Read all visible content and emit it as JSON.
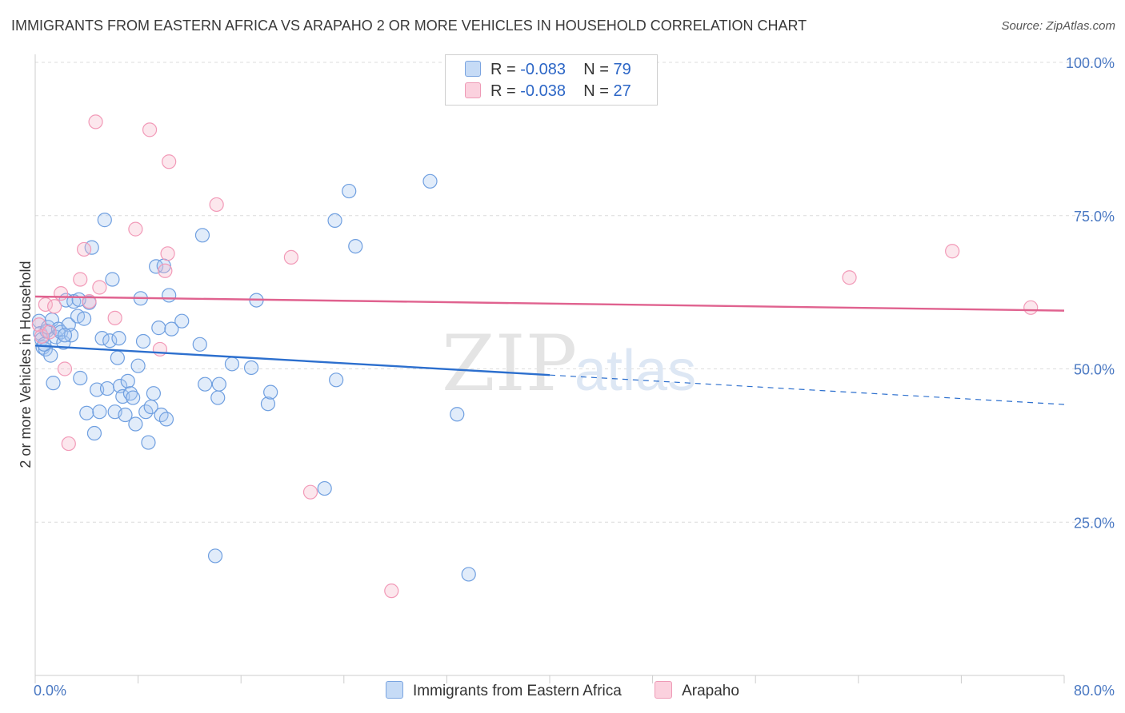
{
  "title": "IMMIGRANTS FROM EASTERN AFRICA VS ARAPAHO 2 OR MORE VEHICLES IN HOUSEHOLD CORRELATION CHART",
  "source": "Source: ZipAtlas.com",
  "watermark": {
    "zip": "ZIP",
    "atlas": "atlas"
  },
  "legend": {
    "rows": [
      {
        "r_label": "R = ",
        "r_value": "-0.083",
        "n_label": "N = ",
        "n_value": "79",
        "color": "#a9c8f0"
      },
      {
        "r_label": "R = ",
        "r_value": "-0.038",
        "n_label": "N = ",
        "n_value": "27",
        "color": "#f6b9cc"
      }
    ]
  },
  "bottom_legend": [
    {
      "label": "Immigrants from Eastern Africa",
      "color": "#a9c8f0"
    },
    {
      "label": "Arapaho",
      "color": "#f6b9cc"
    }
  ],
  "chart_data": {
    "type": "scatter",
    "xlabel": "",
    "ylabel": "2 or more Vehicles in Household",
    "xlim": [
      0,
      80
    ],
    "ylim": [
      0,
      100
    ],
    "x_tick_labels": [
      "0.0%",
      "80.0%"
    ],
    "y_ticks": [
      25,
      50,
      75,
      100
    ],
    "y_tick_labels": [
      "25.0%",
      "50.0%",
      "75.0%",
      "100.0%"
    ],
    "grid": true,
    "legend_position": "top-center",
    "series": [
      {
        "name": "Immigrants from Eastern Africa",
        "color": "#6f9fe0",
        "line_color": "#2c6fce",
        "trend": {
          "x0": 0,
          "y0": 53.8,
          "x1": 40,
          "y1": 49.0,
          "dash_to_x": 80,
          "dash_to_y": 44.2
        },
        "points": [
          [
            0.3,
            57.8
          ],
          [
            0.4,
            55.8
          ],
          [
            0.5,
            54.8
          ],
          [
            0.6,
            53.5
          ],
          [
            0.8,
            53.2
          ],
          [
            0.9,
            56.2
          ],
          [
            1.0,
            56.8
          ],
          [
            1.2,
            52.2
          ],
          [
            1.3,
            58.0
          ],
          [
            1.4,
            47.7
          ],
          [
            1.6,
            55.2
          ],
          [
            1.8,
            56.5
          ],
          [
            2.0,
            56.0
          ],
          [
            2.2,
            54.3
          ],
          [
            2.4,
            61.2
          ],
          [
            2.6,
            57.2
          ],
          [
            2.8,
            55.5
          ],
          [
            3.0,
            61.0
          ],
          [
            3.3,
            58.6
          ],
          [
            3.5,
            48.5
          ],
          [
            3.8,
            58.2
          ],
          [
            4.0,
            42.8
          ],
          [
            4.2,
            60.8
          ],
          [
            4.4,
            69.8
          ],
          [
            4.6,
            39.5
          ],
          [
            4.8,
            46.6
          ],
          [
            5.0,
            43.0
          ],
          [
            5.2,
            55.0
          ],
          [
            5.4,
            74.3
          ],
          [
            5.6,
            46.8
          ],
          [
            5.8,
            54.6
          ],
          [
            6.0,
            64.6
          ],
          [
            6.2,
            43.0
          ],
          [
            6.4,
            51.8
          ],
          [
            6.6,
            47.2
          ],
          [
            6.8,
            45.5
          ],
          [
            7.0,
            42.5
          ],
          [
            7.2,
            48.0
          ],
          [
            7.4,
            46.0
          ],
          [
            7.6,
            45.3
          ],
          [
            7.8,
            41.0
          ],
          [
            8.0,
            50.5
          ],
          [
            8.2,
            61.5
          ],
          [
            8.4,
            54.5
          ],
          [
            8.6,
            43.0
          ],
          [
            8.8,
            38.0
          ],
          [
            9.0,
            43.8
          ],
          [
            9.2,
            46.0
          ],
          [
            9.4,
            66.7
          ],
          [
            9.6,
            56.7
          ],
          [
            9.8,
            42.5
          ],
          [
            10.0,
            66.8
          ],
          [
            10.2,
            41.8
          ],
          [
            10.4,
            62.0
          ],
          [
            10.6,
            56.5
          ],
          [
            11.4,
            57.8
          ],
          [
            12.8,
            54.0
          ],
          [
            13.0,
            71.8
          ],
          [
            13.2,
            47.5
          ],
          [
            14.0,
            19.5
          ],
          [
            14.2,
            45.3
          ],
          [
            14.3,
            47.5
          ],
          [
            15.3,
            50.8
          ],
          [
            16.8,
            50.2
          ],
          [
            17.2,
            61.2
          ],
          [
            18.1,
            44.3
          ],
          [
            18.3,
            46.2
          ],
          [
            22.5,
            30.5
          ],
          [
            23.3,
            74.2
          ],
          [
            23.4,
            48.2
          ],
          [
            24.4,
            79.0
          ],
          [
            24.9,
            70.0
          ],
          [
            30.7,
            80.6
          ],
          [
            32.8,
            42.6
          ],
          [
            33.7,
            16.5
          ],
          [
            0.7,
            54.0
          ],
          [
            2.3,
            55.5
          ],
          [
            6.5,
            55.0
          ],
          [
            3.4,
            61.3
          ]
        ]
      },
      {
        "name": "Arapaho",
        "color": "#f29ab8",
        "line_color": "#e0628f",
        "trend": {
          "x0": 0,
          "y0": 61.8,
          "x1": 80,
          "y1": 59.5
        },
        "points": [
          [
            0.3,
            57.2
          ],
          [
            0.5,
            55.3
          ],
          [
            0.8,
            60.5
          ],
          [
            1.5,
            60.2
          ],
          [
            2.0,
            62.3
          ],
          [
            2.3,
            50.0
          ],
          [
            2.6,
            37.8
          ],
          [
            3.5,
            64.6
          ],
          [
            3.8,
            69.5
          ],
          [
            4.2,
            61.0
          ],
          [
            4.7,
            90.3
          ],
          [
            5.0,
            63.3
          ],
          [
            6.2,
            58.3
          ],
          [
            7.8,
            72.8
          ],
          [
            8.9,
            89.0
          ],
          [
            9.7,
            53.2
          ],
          [
            10.1,
            66.0
          ],
          [
            10.3,
            68.8
          ],
          [
            10.4,
            83.8
          ],
          [
            14.1,
            76.8
          ],
          [
            19.9,
            68.2
          ],
          [
            21.4,
            29.9
          ],
          [
            27.7,
            13.8
          ],
          [
            63.3,
            64.9
          ],
          [
            71.3,
            69.2
          ],
          [
            77.4,
            60.0
          ],
          [
            1.1,
            56.0
          ]
        ]
      }
    ]
  }
}
